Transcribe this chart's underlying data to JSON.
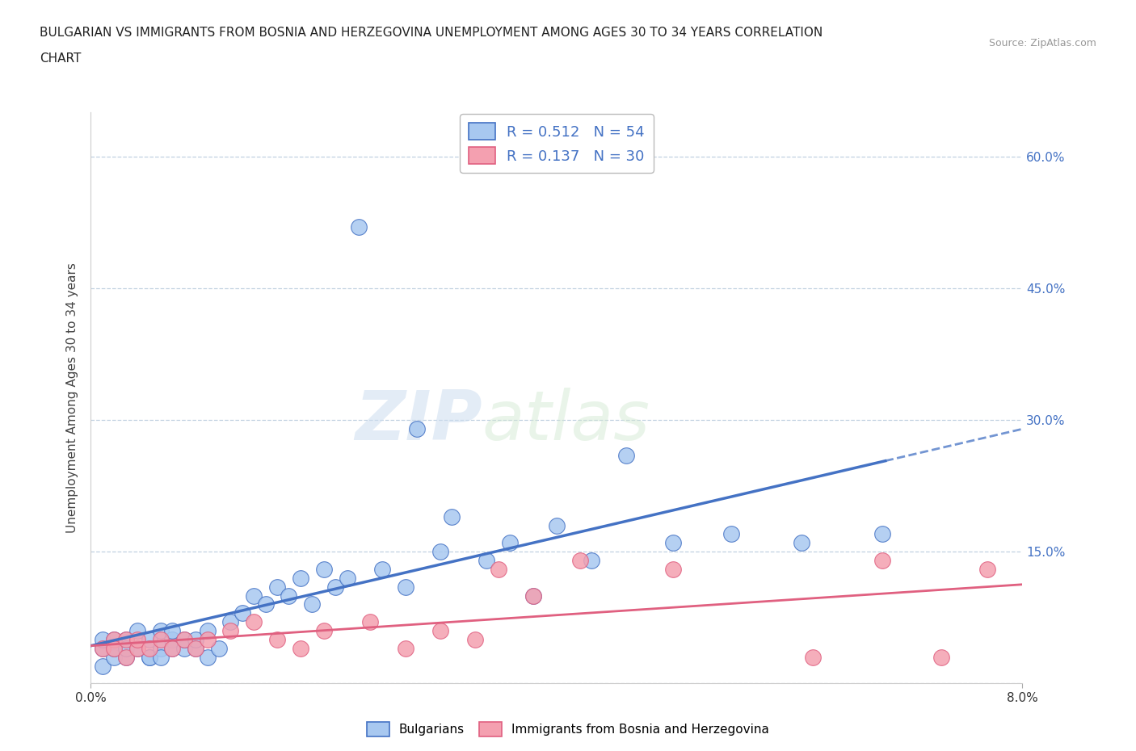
{
  "title_line1": "BULGARIAN VS IMMIGRANTS FROM BOSNIA AND HERZEGOVINA UNEMPLOYMENT AMONG AGES 30 TO 34 YEARS CORRELATION",
  "title_line2": "CHART",
  "source": "Source: ZipAtlas.com",
  "ylabel": "Unemployment Among Ages 30 to 34 years",
  "xlim": [
    0.0,
    0.08
  ],
  "ylim": [
    0.0,
    0.65
  ],
  "yticks": [
    0.0,
    0.15,
    0.3,
    0.45,
    0.6
  ],
  "ytick_labels": [
    "",
    "15.0%",
    "30.0%",
    "45.0%",
    "60.0%"
  ],
  "blue_R": 0.512,
  "blue_N": 54,
  "pink_R": 0.137,
  "pink_N": 30,
  "blue_color": "#a8c8f0",
  "blue_line_color": "#4472c4",
  "pink_color": "#f4a0b0",
  "pink_line_color": "#e06080",
  "watermark_zip": "ZIP",
  "watermark_atlas": "atlas",
  "legend_label_blue": "Bulgarians",
  "legend_label_pink": "Immigrants from Bosnia and Herzegovina",
  "blue_scatter_x": [
    0.001,
    0.001,
    0.001,
    0.002,
    0.002,
    0.002,
    0.003,
    0.003,
    0.003,
    0.004,
    0.004,
    0.005,
    0.005,
    0.005,
    0.006,
    0.006,
    0.006,
    0.007,
    0.007,
    0.007,
    0.008,
    0.008,
    0.009,
    0.009,
    0.01,
    0.01,
    0.011,
    0.012,
    0.013,
    0.014,
    0.015,
    0.016,
    0.017,
    0.018,
    0.019,
    0.02,
    0.021,
    0.022,
    0.023,
    0.025,
    0.027,
    0.028,
    0.03,
    0.031,
    0.034,
    0.036,
    0.038,
    0.04,
    0.043,
    0.046,
    0.05,
    0.055,
    0.061,
    0.068
  ],
  "blue_scatter_y": [
    0.04,
    0.02,
    0.05,
    0.03,
    0.05,
    0.04,
    0.03,
    0.05,
    0.04,
    0.04,
    0.06,
    0.03,
    0.05,
    0.03,
    0.04,
    0.06,
    0.03,
    0.05,
    0.04,
    0.06,
    0.04,
    0.05,
    0.04,
    0.05,
    0.03,
    0.06,
    0.04,
    0.07,
    0.08,
    0.1,
    0.09,
    0.11,
    0.1,
    0.12,
    0.09,
    0.13,
    0.11,
    0.12,
    0.52,
    0.13,
    0.11,
    0.29,
    0.15,
    0.19,
    0.14,
    0.16,
    0.1,
    0.18,
    0.14,
    0.26,
    0.16,
    0.17,
    0.16,
    0.17
  ],
  "pink_scatter_x": [
    0.001,
    0.002,
    0.002,
    0.003,
    0.003,
    0.004,
    0.004,
    0.005,
    0.006,
    0.007,
    0.008,
    0.009,
    0.01,
    0.012,
    0.014,
    0.016,
    0.018,
    0.02,
    0.024,
    0.027,
    0.03,
    0.033,
    0.035,
    0.038,
    0.042,
    0.05,
    0.062,
    0.068,
    0.073,
    0.077
  ],
  "pink_scatter_y": [
    0.04,
    0.05,
    0.04,
    0.03,
    0.05,
    0.04,
    0.05,
    0.04,
    0.05,
    0.04,
    0.05,
    0.04,
    0.05,
    0.06,
    0.07,
    0.05,
    0.04,
    0.06,
    0.07,
    0.04,
    0.06,
    0.05,
    0.13,
    0.1,
    0.14,
    0.13,
    0.03,
    0.14,
    0.03,
    0.13
  ],
  "grid_color": "#c0d0e0",
  "bg_color": "#ffffff"
}
